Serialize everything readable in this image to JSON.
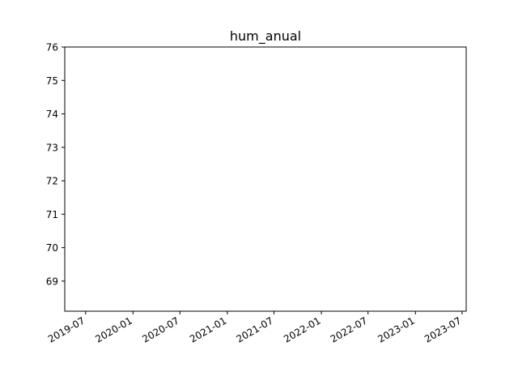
{
  "chart_data": {
    "type": "line",
    "title": "hum_anual",
    "xlabel": "",
    "ylabel": "",
    "series": [],
    "x_axis": {
      "scale": "date",
      "ticks": [
        "2019-07",
        "2020-01",
        "2020-07",
        "2021-01",
        "2021-07",
        "2022-01",
        "2022-07",
        "2023-01",
        "2023-07"
      ],
      "range": [
        "2019-04-11",
        "2023-07-17"
      ]
    },
    "y_axis": {
      "ticks": [
        "69",
        "70",
        "71",
        "72",
        "73",
        "74",
        "75",
        "76"
      ],
      "range": [
        68.1,
        76.0
      ]
    },
    "grid": false,
    "legend": "none"
  }
}
